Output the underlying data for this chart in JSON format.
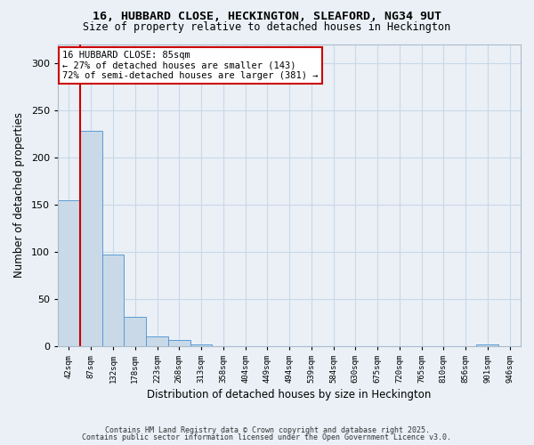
{
  "title1": "16, HUBBARD CLOSE, HECKINGTON, SLEAFORD, NG34 9UT",
  "title2": "Size of property relative to detached houses in Heckington",
  "xlabel": "Distribution of detached houses by size in Heckington",
  "ylabel": "Number of detached properties",
  "bin_labels": [
    "42sqm",
    "87sqm",
    "132sqm",
    "178sqm",
    "223sqm",
    "268sqm",
    "313sqm",
    "358sqm",
    "404sqm",
    "449sqm",
    "494sqm",
    "539sqm",
    "584sqm",
    "630sqm",
    "675sqm",
    "720sqm",
    "765sqm",
    "810sqm",
    "856sqm",
    "901sqm",
    "946sqm"
  ],
  "bar_values": [
    155,
    228,
    97,
    31,
    10,
    6,
    2,
    0,
    0,
    0,
    0,
    0,
    0,
    0,
    0,
    0,
    0,
    0,
    0,
    2,
    0
  ],
  "bar_color": "#c9d9e8",
  "bar_edge_color": "#5b9bd5",
  "annotation_line1": "16 HUBBARD CLOSE: 85sqm",
  "annotation_line2": "← 27% of detached houses are smaller (143)",
  "annotation_line3": "72% of semi-detached houses are larger (381) →",
  "annotation_box_color": "#ffffff",
  "annotation_box_edge_color": "#cc0000",
  "vline_color": "#cc0000",
  "ylim": [
    0,
    320
  ],
  "yticks": [
    0,
    50,
    100,
    150,
    200,
    250,
    300
  ],
  "grid_color": "#c8d8e8",
  "footer1": "Contains HM Land Registry data © Crown copyright and database right 2025.",
  "footer2": "Contains public sector information licensed under the Open Government Licence v3.0.",
  "bg_color": "#eaf0f6"
}
